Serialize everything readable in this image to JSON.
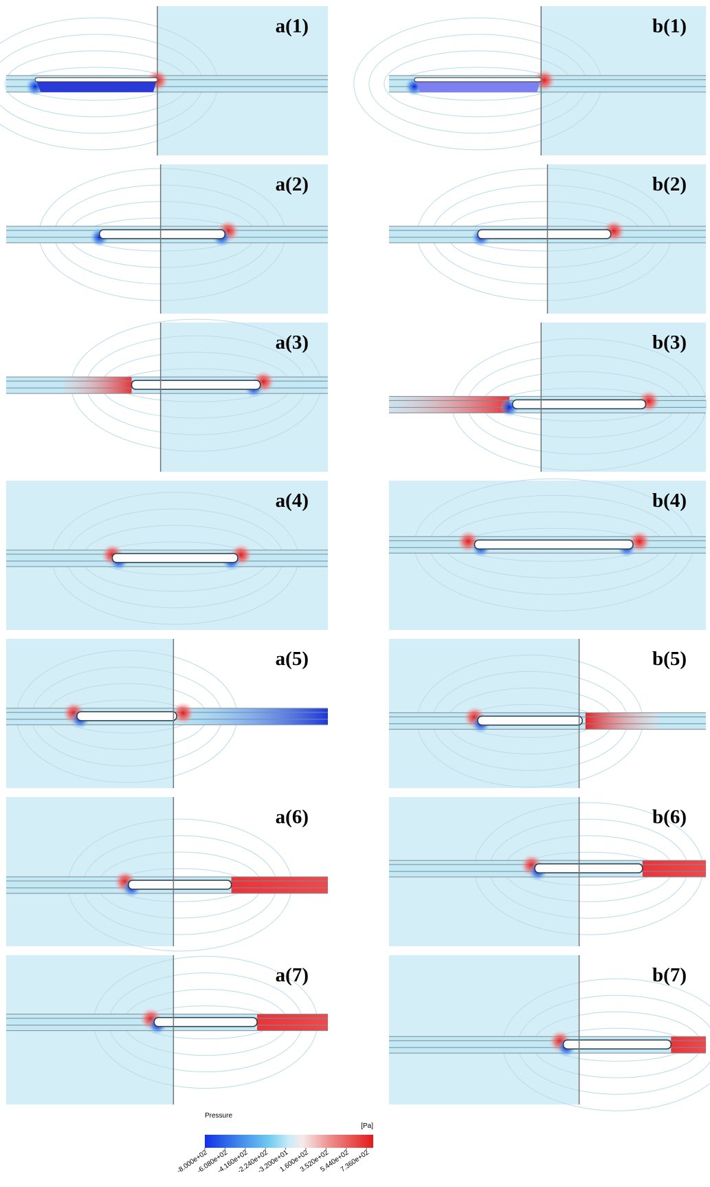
{
  "panels": {
    "a": [
      "a(1)",
      "a(2)",
      "a(3)",
      "a(4)",
      "a(5)",
      "a(6)",
      "a(7)"
    ],
    "b": [
      "b(1)",
      "b(2)",
      "b(3)",
      "b(4)",
      "b(5)",
      "b(6)",
      "b(7)"
    ]
  },
  "colorbar": {
    "title": "Pressure",
    "unit": "[Pa]",
    "lim": [
      -800,
      800
    ],
    "ticks": [
      {
        "value": -800,
        "label": "-8.000e+02"
      },
      {
        "value": -608,
        "label": "-6.080e+02"
      },
      {
        "value": -416,
        "label": "-4.160e+02"
      },
      {
        "value": -224,
        "label": "-2.240e+02"
      },
      {
        "value": -32,
        "label": "-3.200e+01"
      },
      {
        "value": 160,
        "label": "1.600e+02"
      },
      {
        "value": 352,
        "label": "3.520e+02"
      },
      {
        "value": 544,
        "label": "5.440e+02"
      },
      {
        "value": 736,
        "label": "7.360e+02"
      }
    ]
  }
}
